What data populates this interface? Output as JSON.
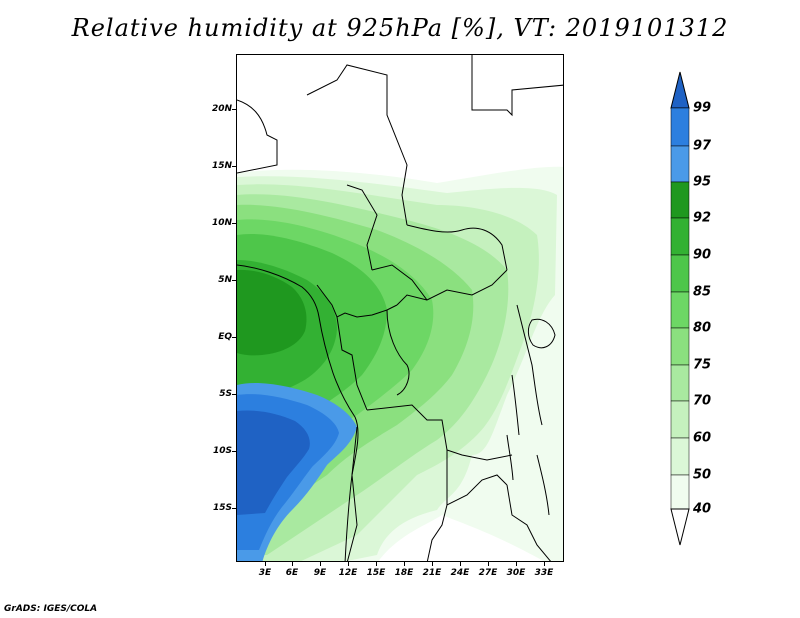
{
  "title": "Relative humidity at 925hPa [%], VT: 2019101312",
  "credit": "GrADS: IGES/COLA",
  "map": {
    "lat_labels": [
      "20N",
      "15N",
      "10N",
      "5N",
      "EQ",
      "5S",
      "10S",
      "15S"
    ],
    "lon_labels": [
      "3E",
      "6E",
      "9E",
      "12E",
      "15E",
      "18E",
      "21E",
      "24E",
      "27E",
      "30E",
      "33E"
    ],
    "colors": {
      "rh_40_50": "#f0fcef",
      "rh_50_60": "#dbf7d7",
      "rh_60_70": "#c5f1be",
      "rh_70_75": "#a9e9a0",
      "rh_75_80": "#8be07f",
      "rh_80_85": "#6dd765",
      "rh_85_90": "#4ec64a",
      "rh_90_92": "#33b133",
      "rh_92_95": "#1f981f",
      "rh_95_97": "#4a9ae8",
      "rh_97_99": "#2c7fdf",
      "rh_99_plus": "#1f62c4",
      "borders": "#000000"
    }
  },
  "colorbar": {
    "levels": [
      "99",
      "97",
      "95",
      "92",
      "90",
      "85",
      "80",
      "75",
      "70",
      "60",
      "50",
      "40"
    ],
    "bins": [
      {
        "range": ">99",
        "color": "#1f62c4"
      },
      {
        "range": "97-99",
        "color": "#2c7fdf"
      },
      {
        "range": "95-97",
        "color": "#4a9ae8"
      },
      {
        "range": "92-95",
        "color": "#1f981f"
      },
      {
        "range": "90-92",
        "color": "#33b133"
      },
      {
        "range": "85-90",
        "color": "#4ec64a"
      },
      {
        "range": "80-85",
        "color": "#6dd765"
      },
      {
        "range": "75-80",
        "color": "#8be07f"
      },
      {
        "range": "70-75",
        "color": "#a9e9a0"
      },
      {
        "range": "60-70",
        "color": "#c5f1be"
      },
      {
        "range": "50-60",
        "color": "#dbf7d7"
      },
      {
        "range": "40-50",
        "color": "#f0fcef"
      },
      {
        "range": "<40",
        "color": "#ffffff"
      }
    ]
  }
}
